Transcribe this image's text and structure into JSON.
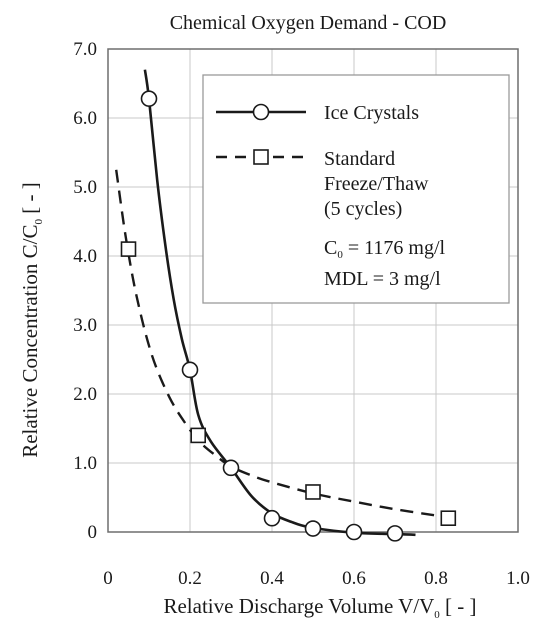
{
  "chart_data": {
    "type": "line",
    "title": "Chemical Oxygen Demand - COD",
    "xlabel": {
      "main": "Relative Discharge Volume V/V",
      "sub": "0",
      "tail": " [ - ]"
    },
    "ylabel": {
      "main": "Relative Concentration C/C",
      "sub": "0",
      "tail": " [ - ]"
    },
    "xlim": [
      0,
      1.0
    ],
    "ylim": [
      0,
      7.0
    ],
    "xticks": [
      0,
      0.2,
      0.4,
      0.6,
      0.8,
      1.0
    ],
    "xtick_labels": [
      "0",
      "0.2",
      "0.4",
      "0.6",
      "0.8",
      "1.0"
    ],
    "yticks": [
      0,
      1,
      2,
      3,
      4,
      5,
      6,
      7
    ],
    "ytick_labels": [
      "0",
      "1.0",
      "2.0",
      "3.0",
      "4.0",
      "5.0",
      "6.0",
      "7.0"
    ],
    "grid": true,
    "legend_position": "top-right",
    "series": [
      {
        "name": "Ice Crystals",
        "marker": "circle",
        "line": "solid",
        "points": [
          {
            "x": 0.1,
            "y": 6.28
          },
          {
            "x": 0.2,
            "y": 2.35
          },
          {
            "x": 0.3,
            "y": 0.93
          },
          {
            "x": 0.4,
            "y": 0.2
          },
          {
            "x": 0.5,
            "y": 0.05
          },
          {
            "x": 0.6,
            "y": 0.0
          },
          {
            "x": 0.7,
            "y": -0.02
          }
        ],
        "fit": [
          [
            0.09,
            6.7
          ],
          [
            0.1,
            6.28
          ],
          [
            0.12,
            5.1
          ],
          [
            0.14,
            4.15
          ],
          [
            0.16,
            3.38
          ],
          [
            0.18,
            2.8
          ],
          [
            0.2,
            2.35
          ],
          [
            0.22,
            1.7
          ],
          [
            0.25,
            1.32
          ],
          [
            0.3,
            0.93
          ],
          [
            0.35,
            0.52
          ],
          [
            0.4,
            0.27
          ],
          [
            0.45,
            0.14
          ],
          [
            0.5,
            0.06
          ],
          [
            0.6,
            -0.01
          ],
          [
            0.7,
            -0.03
          ],
          [
            0.75,
            -0.04
          ]
        ]
      },
      {
        "name": "Standard Freeze/Thaw (5 cycles)",
        "marker": "square",
        "line": "dashed",
        "points": [
          {
            "x": 0.05,
            "y": 4.1
          },
          {
            "x": 0.22,
            "y": 1.4
          },
          {
            "x": 0.5,
            "y": 0.58
          },
          {
            "x": 0.83,
            "y": 0.2
          }
        ],
        "fit": [
          [
            0.02,
            5.25
          ],
          [
            0.04,
            4.4
          ],
          [
            0.06,
            3.7
          ],
          [
            0.08,
            3.15
          ],
          [
            0.1,
            2.7
          ],
          [
            0.12,
            2.35
          ],
          [
            0.15,
            1.95
          ],
          [
            0.18,
            1.65
          ],
          [
            0.22,
            1.33
          ],
          [
            0.26,
            1.12
          ],
          [
            0.3,
            0.95
          ],
          [
            0.35,
            0.82
          ],
          [
            0.4,
            0.72
          ],
          [
            0.5,
            0.56
          ],
          [
            0.6,
            0.44
          ],
          [
            0.7,
            0.33
          ],
          [
            0.8,
            0.24
          ],
          [
            0.86,
            0.2
          ]
        ]
      }
    ],
    "annotations": {
      "c0": {
        "main": "C",
        "sub": "0",
        "tail": " = 1176 mg/l"
      },
      "mdl": "MDL = 3 mg/l"
    },
    "legend_lines": {
      "ice": "Ice Crystals",
      "std": [
        "Standard",
        "Freeze/Thaw",
        "(5 cycles)"
      ]
    }
  },
  "colors": {
    "line": "#1a1a1a",
    "grid": "#c8c8c8",
    "frame": "#6e6e6e",
    "legend_frame": "#9a9a9a"
  }
}
